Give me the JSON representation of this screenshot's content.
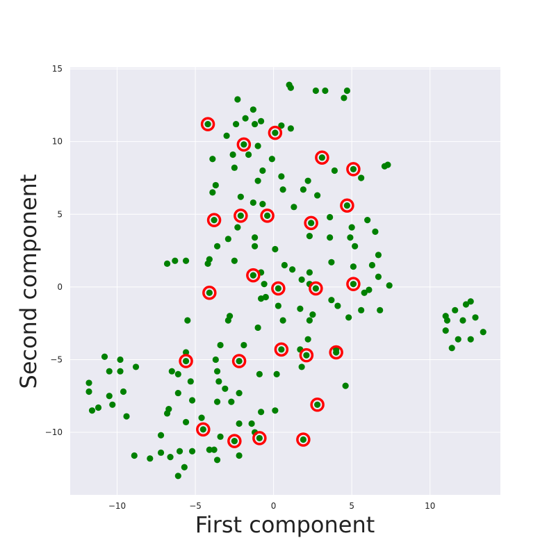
{
  "chart_data": {
    "type": "scatter",
    "xlabel": "First component",
    "ylabel": "Second component",
    "xlim": [
      -13,
      14.5
    ],
    "ylim": [
      -14.3,
      15.1
    ],
    "xticks": [
      -10,
      -5,
      0,
      5,
      10
    ],
    "yticks": [
      -10,
      -5,
      0,
      5,
      10,
      15
    ],
    "xtick_labels": [
      "−10",
      "−5",
      "0",
      "5",
      "10"
    ],
    "ytick_labels": [
      "−10",
      "−5",
      "0",
      "5",
      "10",
      "15"
    ],
    "grid": true,
    "colors": {
      "background": "#eaeaf2",
      "grid": "#ffffff",
      "points": "#008000",
      "highlight": "#ff0000"
    },
    "points": [
      [
        -2.3,
        12.9
      ],
      [
        -1.3,
        12.2
      ],
      [
        -1.8,
        11.6
      ],
      [
        -2.4,
        11.2
      ],
      [
        -1.2,
        11.2
      ],
      [
        -0.8,
        11.4
      ],
      [
        0.5,
        11.1
      ],
      [
        1.1,
        10.9
      ],
      [
        -3.0,
        10.4
      ],
      [
        1.0,
        13.9
      ],
      [
        1.1,
        13.7
      ],
      [
        2.7,
        13.5
      ],
      [
        3.3,
        13.5
      ],
      [
        4.7,
        13.5
      ],
      [
        4.5,
        13.0
      ],
      [
        -1.0,
        9.7
      ],
      [
        -2.6,
        9.1
      ],
      [
        -1.6,
        9.1
      ],
      [
        -3.9,
        8.8
      ],
      [
        -0.1,
        8.8
      ],
      [
        -2.5,
        8.2
      ],
      [
        -0.7,
        8.0
      ],
      [
        3.9,
        8.0
      ],
      [
        -1.0,
        7.3
      ],
      [
        0.5,
        7.6
      ],
      [
        2.2,
        7.3
      ],
      [
        5.6,
        7.5
      ],
      [
        -3.7,
        7.0
      ],
      [
        0.6,
        6.7
      ],
      [
        1.9,
        6.7
      ],
      [
        -3.9,
        6.5
      ],
      [
        2.8,
        6.3
      ],
      [
        -2.1,
        6.2
      ],
      [
        7.1,
        8.3
      ],
      [
        7.3,
        8.4
      ],
      [
        -1.3,
        5.8
      ],
      [
        -0.7,
        5.7
      ],
      [
        1.3,
        5.5
      ],
      [
        3.6,
        4.8
      ],
      [
        6.0,
        4.6
      ],
      [
        -2.3,
        4.1
      ],
      [
        5.0,
        4.1
      ],
      [
        6.5,
        3.8
      ],
      [
        -1.2,
        3.4
      ],
      [
        2.3,
        3.5
      ],
      [
        3.6,
        3.4
      ],
      [
        4.9,
        3.4
      ],
      [
        -2.9,
        3.3
      ],
      [
        -1.2,
        2.8
      ],
      [
        5.2,
        2.8
      ],
      [
        -3.6,
        2.8
      ],
      [
        0.1,
        2.6
      ],
      [
        6.7,
        2.2
      ],
      [
        -4.1,
        1.9
      ],
      [
        -5.6,
        1.8
      ],
      [
        -2.5,
        1.8
      ],
      [
        -6.3,
        1.8
      ],
      [
        -4.2,
        1.6
      ],
      [
        -6.8,
        1.6
      ],
      [
        3.7,
        1.7
      ],
      [
        0.7,
        1.5
      ],
      [
        5.1,
        1.4
      ],
      [
        6.3,
        1.5
      ],
      [
        1.2,
        1.2
      ],
      [
        2.3,
        1.0
      ],
      [
        -0.8,
        1.0
      ],
      [
        1.8,
        0.5
      ],
      [
        6.7,
        0.7
      ],
      [
        -0.6,
        0.2
      ],
      [
        2.3,
        0.2
      ],
      [
        7.4,
        0.1
      ],
      [
        5.8,
        -0.4
      ],
      [
        6.1,
        -0.2
      ],
      [
        -0.8,
        -0.8
      ],
      [
        -0.5,
        -0.7
      ],
      [
        3.7,
        -0.9
      ],
      [
        4.1,
        -1.3
      ],
      [
        0.3,
        -1.3
      ],
      [
        1.7,
        -1.5
      ],
      [
        5.6,
        -1.6
      ],
      [
        6.8,
        -1.6
      ],
      [
        2.5,
        -1.9
      ],
      [
        -2.8,
        -2.0
      ],
      [
        -2.9,
        -2.3
      ],
      [
        -5.5,
        -2.3
      ],
      [
        0.6,
        -2.3
      ],
      [
        2.3,
        -2.3
      ],
      [
        4.8,
        -2.1
      ],
      [
        -1.0,
        -2.8
      ],
      [
        2.2,
        -3.6
      ],
      [
        -1.9,
        -4.0
      ],
      [
        -3.4,
        -4.0
      ],
      [
        1.7,
        -4.3
      ],
      [
        -5.6,
        -4.5
      ],
      [
        4.0,
        -4.3
      ],
      [
        -10.8,
        -4.8
      ],
      [
        -9.8,
        -5.0
      ],
      [
        -3.7,
        -5.0
      ],
      [
        -8.8,
        -5.5
      ],
      [
        -10.5,
        -5.8
      ],
      [
        -9.8,
        -5.8
      ],
      [
        1.8,
        -5.5
      ],
      [
        -3.6,
        -5.8
      ],
      [
        -6.5,
        -5.8
      ],
      [
        -6.1,
        -6.0
      ],
      [
        -0.9,
        -6.0
      ],
      [
        0.2,
        -6.0
      ],
      [
        -5.3,
        -6.5
      ],
      [
        -3.5,
        -6.5
      ],
      [
        -11.8,
        -6.6
      ],
      [
        4.6,
        -6.8
      ],
      [
        -3.1,
        -7.0
      ],
      [
        -11.8,
        -7.2
      ],
      [
        -9.6,
        -7.2
      ],
      [
        -6.1,
        -7.3
      ],
      [
        -2.2,
        -7.3
      ],
      [
        -10.5,
        -7.5
      ],
      [
        -5.2,
        -7.8
      ],
      [
        -3.6,
        -7.9
      ],
      [
        -2.7,
        -7.9
      ],
      [
        -10.3,
        -8.1
      ],
      [
        -11.2,
        -8.3
      ],
      [
        -6.7,
        -8.4
      ],
      [
        -11.6,
        -8.5
      ],
      [
        -6.8,
        -8.7
      ],
      [
        -0.8,
        -8.6
      ],
      [
        0.1,
        -8.5
      ],
      [
        -9.4,
        -8.9
      ],
      [
        -4.6,
        -9.0
      ],
      [
        -5.6,
        -9.3
      ],
      [
        -2.2,
        -9.4
      ],
      [
        -1.4,
        -9.4
      ],
      [
        -7.2,
        -10.2
      ],
      [
        -3.4,
        -10.3
      ],
      [
        -1.2,
        -10.0
      ],
      [
        -8.9,
        -11.6
      ],
      [
        -7.9,
        -11.8
      ],
      [
        -7.2,
        -11.4
      ],
      [
        -6.0,
        -11.3
      ],
      [
        -5.2,
        -11.3
      ],
      [
        -4.1,
        -11.2
      ],
      [
        -3.8,
        -11.2
      ],
      [
        -6.6,
        -11.7
      ],
      [
        -2.2,
        -11.6
      ],
      [
        -3.6,
        -11.9
      ],
      [
        -5.7,
        -12.4
      ],
      [
        -6.1,
        -13.0
      ],
      [
        11.0,
        -2.0
      ],
      [
        11.1,
        -2.3
      ],
      [
        11.0,
        -3.0
      ],
      [
        11.6,
        -1.6
      ],
      [
        12.1,
        -2.3
      ],
      [
        12.3,
        -1.2
      ],
      [
        12.6,
        -1.0
      ],
      [
        12.9,
        -2.1
      ],
      [
        11.8,
        -3.6
      ],
      [
        12.6,
        -3.6
      ],
      [
        13.4,
        -3.1
      ],
      [
        11.4,
        -4.2
      ]
    ],
    "highlighted": [
      [
        -4.2,
        11.2
      ],
      [
        0.1,
        10.6
      ],
      [
        -1.9,
        9.8
      ],
      [
        3.1,
        8.9
      ],
      [
        5.1,
        8.1
      ],
      [
        4.7,
        5.6
      ],
      [
        -3.8,
        4.6
      ],
      [
        -2.1,
        4.9
      ],
      [
        -0.4,
        4.9
      ],
      [
        2.4,
        4.4
      ],
      [
        -1.3,
        0.8
      ],
      [
        0.3,
        -0.1
      ],
      [
        2.7,
        -0.1
      ],
      [
        5.1,
        0.2
      ],
      [
        -4.1,
        -0.4
      ],
      [
        0.5,
        -4.3
      ],
      [
        2.1,
        -4.7
      ],
      [
        4.0,
        -4.5
      ],
      [
        -5.6,
        -5.1
      ],
      [
        -2.2,
        -5.1
      ],
      [
        2.8,
        -8.1
      ],
      [
        -4.5,
        -9.8
      ],
      [
        -2.5,
        -10.6
      ],
      [
        -0.9,
        -10.4
      ],
      [
        1.9,
        -10.5
      ]
    ]
  }
}
